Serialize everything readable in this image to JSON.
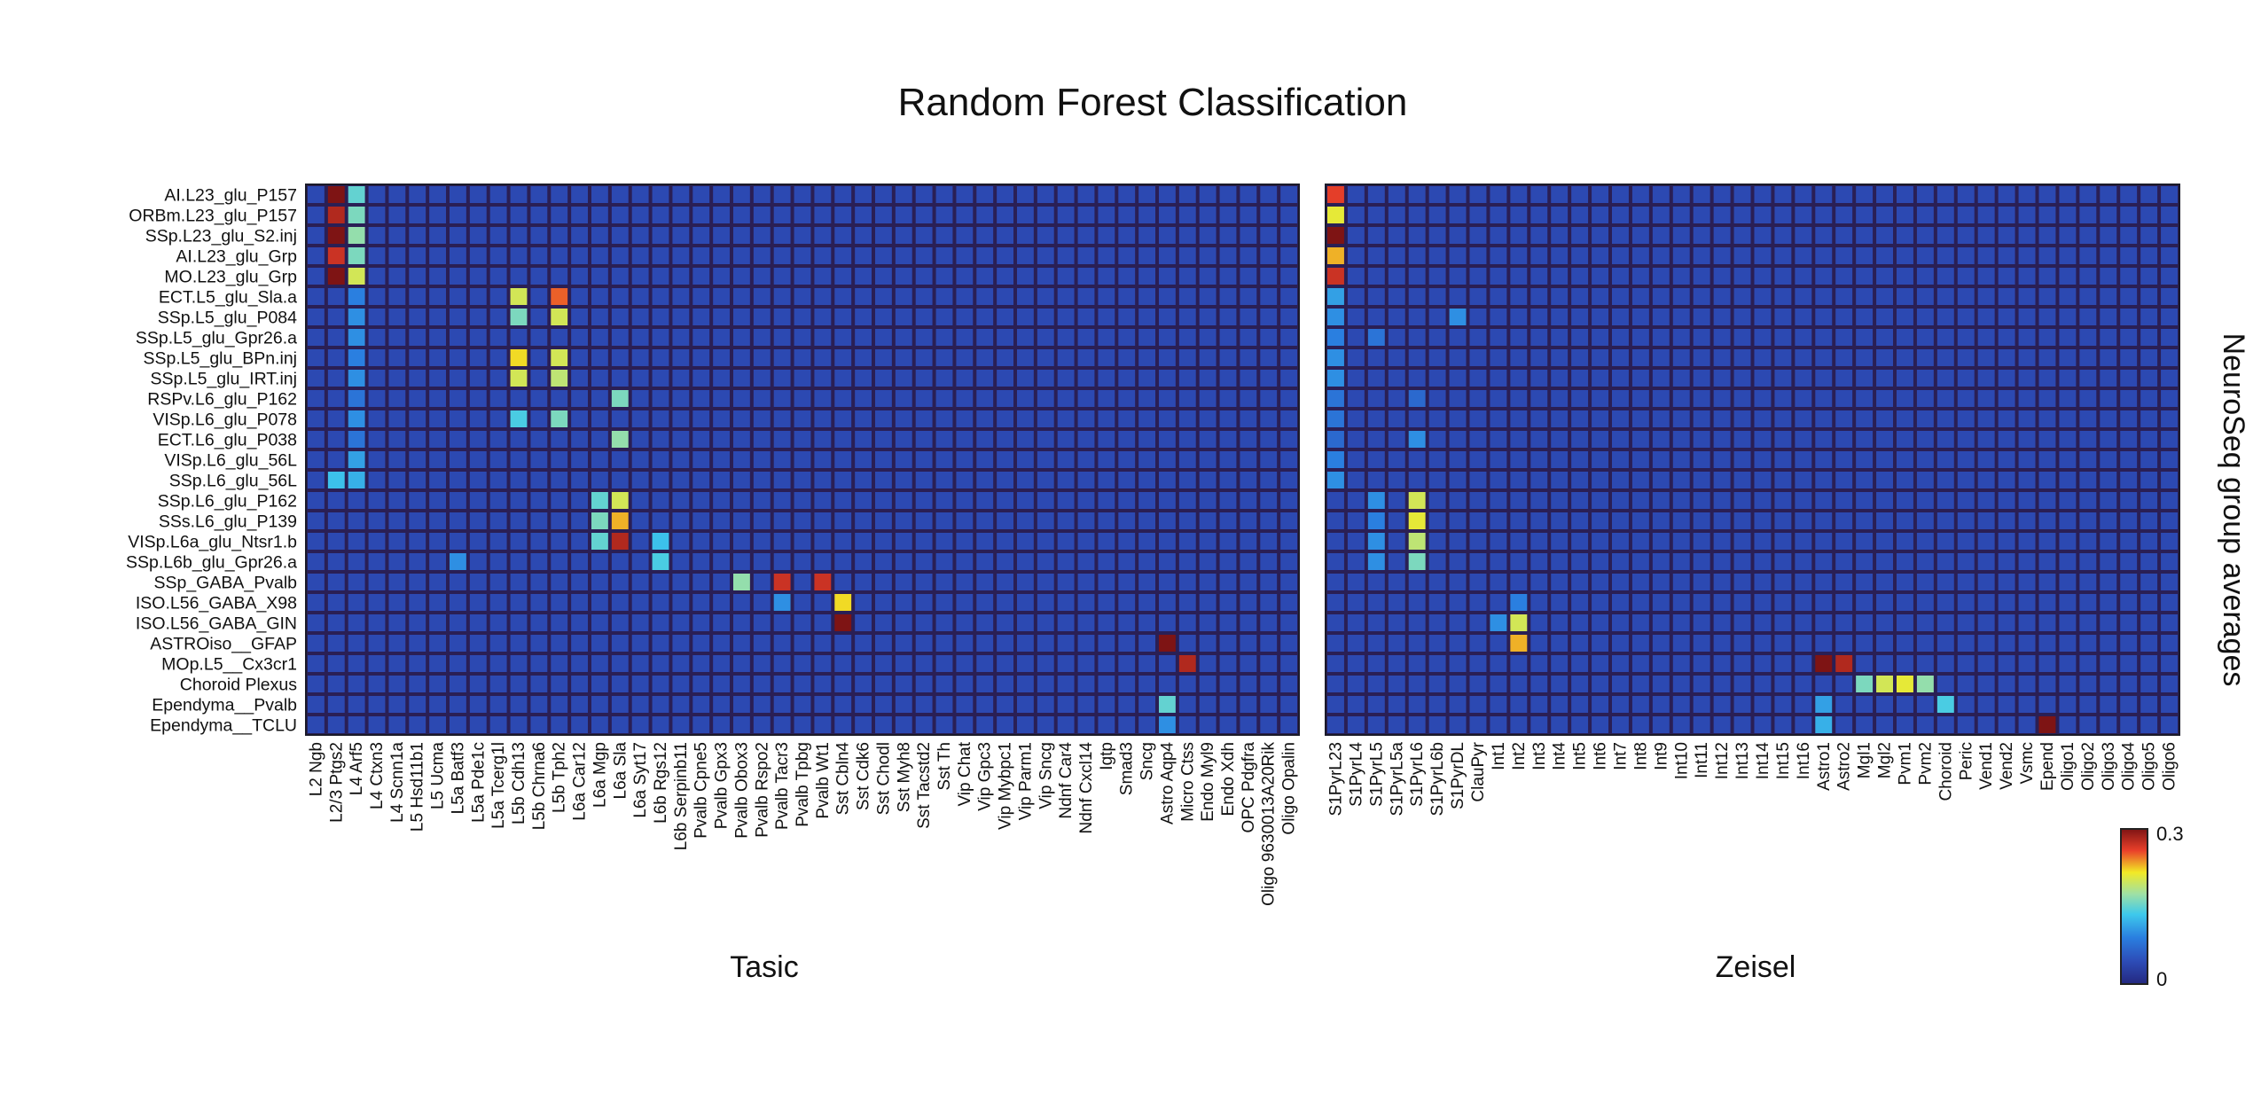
{
  "title": "Random Forest Classification",
  "side_label": "NeuroSeq group averages",
  "colorbar": {
    "min_label": "0",
    "max_label": "0.3",
    "min": 0,
    "max": 0.3
  },
  "chart_data": [
    {
      "type": "heatmap",
      "name": "Tasic",
      "xlabel": "Tasic",
      "rows": [
        "AI.L23_glu_P157",
        "ORBm.L23_glu_P157",
        "SSp.L23_glu_S2.inj",
        "AI.L23_glu_Grp",
        "MO.L23_glu_Grp",
        "ECT.L5_glu_Sla.a",
        "SSp.L5_glu_P084",
        "SSp.L5_glu_Gpr26.a",
        "SSp.L5_glu_BPn.inj",
        "SSp.L5_glu_IRT.inj",
        "RSPv.L6_glu_P162",
        "VISp.L6_glu_P078",
        "ECT.L6_glu_P038",
        "VISp.L6_glu_56L",
        "SSp.L6_glu_56L",
        "SSp.L6_glu_P162",
        "SSs.L6_glu_P139",
        "VISp.L6a_glu_Ntsr1.b",
        "SSp.L6b_glu_Gpr26.a",
        "SSp_GABA_Pvalb",
        "ISO.L56_GABA_X98",
        "ISO.L56_GABA_GIN",
        "ASTROiso__GFAP",
        "MOp.L5__Cx3cr1",
        "Choroid Plexus",
        "Ependyma__Pvalb",
        "Ependyma__TCLU"
      ],
      "columns": [
        "L2 Ngb",
        "L2/3 Ptgs2",
        "L4 Arf5",
        "L4 Ctxn3",
        "L4 Scnn1a",
        "L5 Hsd11b1",
        "L5 Ucma",
        "L5a Batf3",
        "L5a Pde1c",
        "L5a Tcerg1l",
        "L5b Cdh13",
        "L5b Chrna6",
        "L5b Tph2",
        "L6a Car12",
        "L6a Mgp",
        "L6a Sla",
        "L6a Syt17",
        "L6b Rgs12",
        "L6b Serpinb11",
        "Pvalb Cpne5",
        "Pvalb Gpx3",
        "Pvalb Obox3",
        "Pvalb Rspo2",
        "Pvalb Tacr3",
        "Pvalb Tpbg",
        "Pvalb Wt1",
        "Sst Cbln4",
        "Sst Cdk6",
        "Sst Chodl",
        "Sst Myh8",
        "Sst Tacstd2",
        "Sst Th",
        "Vip Chat",
        "Vip Gpc3",
        "Vip Mybpc1",
        "Vip Parm1",
        "Vip Sncg",
        "Ndnf Car4",
        "Ndnf Cxcl14",
        "Igtp",
        "Smad3",
        "Sncg",
        "Astro Aqp4",
        "Micro Ctss",
        "Endo Myl9",
        "Endo Xdh",
        "OPC Pdgfra",
        "Oligo 9630013A20Rik",
        "Oligo Opalin"
      ],
      "base_value": 0.04,
      "highlights": [
        [
          0,
          1,
          0.3
        ],
        [
          0,
          2,
          0.15
        ],
        [
          1,
          1,
          0.28
        ],
        [
          1,
          2,
          0.16
        ],
        [
          2,
          1,
          0.3
        ],
        [
          2,
          2,
          0.17
        ],
        [
          3,
          1,
          0.27
        ],
        [
          3,
          2,
          0.16
        ],
        [
          4,
          1,
          0.3
        ],
        [
          4,
          2,
          0.2
        ],
        [
          5,
          2,
          0.09
        ],
        [
          5,
          10,
          0.2
        ],
        [
          5,
          12,
          0.25
        ],
        [
          6,
          2,
          0.1
        ],
        [
          6,
          10,
          0.16
        ],
        [
          6,
          12,
          0.2
        ],
        [
          7,
          2,
          0.1
        ],
        [
          8,
          2,
          0.09
        ],
        [
          8,
          10,
          0.22
        ],
        [
          8,
          12,
          0.2
        ],
        [
          9,
          2,
          0.1
        ],
        [
          9,
          10,
          0.2
        ],
        [
          9,
          12,
          0.19
        ],
        [
          10,
          2,
          0.08
        ],
        [
          10,
          15,
          0.16
        ],
        [
          11,
          2,
          0.1
        ],
        [
          11,
          10,
          0.14
        ],
        [
          11,
          12,
          0.16
        ],
        [
          12,
          2,
          0.08
        ],
        [
          12,
          15,
          0.17
        ],
        [
          13,
          2,
          0.11
        ],
        [
          14,
          1,
          0.13
        ],
        [
          14,
          2,
          0.12
        ],
        [
          15,
          14,
          0.15
        ],
        [
          15,
          15,
          0.2
        ],
        [
          16,
          14,
          0.16
        ],
        [
          16,
          15,
          0.23
        ],
        [
          17,
          14,
          0.15
        ],
        [
          17,
          15,
          0.28
        ],
        [
          17,
          17,
          0.13
        ],
        [
          18,
          7,
          0.1
        ],
        [
          18,
          17,
          0.14
        ],
        [
          19,
          21,
          0.17
        ],
        [
          19,
          23,
          0.27
        ],
        [
          19,
          25,
          0.27
        ],
        [
          20,
          23,
          0.1
        ],
        [
          20,
          26,
          0.22
        ],
        [
          21,
          26,
          0.3
        ],
        [
          22,
          42,
          0.3
        ],
        [
          23,
          43,
          0.28
        ],
        [
          25,
          42,
          0.15
        ],
        [
          26,
          42,
          0.1
        ]
      ]
    },
    {
      "type": "heatmap",
      "name": "Zeisel",
      "xlabel": "Zeisel",
      "columns": [
        "S1PyrL23",
        "S1PyrL4",
        "S1PyrL5",
        "S1PyrL5a",
        "S1PyrL6",
        "S1PyrL6b",
        "S1PyrDL",
        "ClauPyr",
        "Int1",
        "Int2",
        "Int3",
        "Int4",
        "Int5",
        "Int6",
        "Int7",
        "Int8",
        "Int9",
        "Int10",
        "Int11",
        "Int12",
        "Int13",
        "Int14",
        "Int15",
        "Int16",
        "Astro1",
        "Astro2",
        "Mgl1",
        "Mgl2",
        "Pvm1",
        "Pvm2",
        "Choroid",
        "Peric",
        "Vend1",
        "Vend2",
        "Vsmc",
        "Epend",
        "Oligo1",
        "Oligo2",
        "Oligo3",
        "Oligo4",
        "Oligo5",
        "Oligo6"
      ],
      "base_value": 0.04,
      "highlights": [
        [
          0,
          0,
          0.26
        ],
        [
          1,
          0,
          0.21
        ],
        [
          2,
          0,
          0.3
        ],
        [
          3,
          0,
          0.23
        ],
        [
          4,
          0,
          0.27
        ],
        [
          5,
          0,
          0.11
        ],
        [
          6,
          0,
          0.1
        ],
        [
          6,
          6,
          0.1
        ],
        [
          7,
          0,
          0.09
        ],
        [
          7,
          2,
          0.08
        ],
        [
          8,
          0,
          0.1
        ],
        [
          9,
          0,
          0.1
        ],
        [
          10,
          0,
          0.08
        ],
        [
          10,
          4,
          0.07
        ],
        [
          11,
          0,
          0.08
        ],
        [
          12,
          0,
          0.07
        ],
        [
          12,
          4,
          0.1
        ],
        [
          13,
          0,
          0.09
        ],
        [
          14,
          0,
          0.1
        ],
        [
          15,
          2,
          0.1
        ],
        [
          15,
          4,
          0.2
        ],
        [
          16,
          2,
          0.09
        ],
        [
          16,
          4,
          0.21
        ],
        [
          17,
          2,
          0.1
        ],
        [
          17,
          4,
          0.19
        ],
        [
          18,
          2,
          0.1
        ],
        [
          18,
          4,
          0.16
        ],
        [
          20,
          9,
          0.09
        ],
        [
          21,
          8,
          0.1
        ],
        [
          21,
          9,
          0.2
        ],
        [
          22,
          9,
          0.23
        ],
        [
          23,
          24,
          0.3
        ],
        [
          23,
          25,
          0.28
        ],
        [
          24,
          26,
          0.16
        ],
        [
          24,
          27,
          0.2
        ],
        [
          24,
          28,
          0.21
        ],
        [
          24,
          29,
          0.17
        ],
        [
          25,
          24,
          0.11
        ],
        [
          25,
          30,
          0.14
        ],
        [
          26,
          24,
          0.12
        ],
        [
          26,
          35,
          0.3
        ],
        [
          27,
          35,
          0.3
        ]
      ]
    }
  ]
}
